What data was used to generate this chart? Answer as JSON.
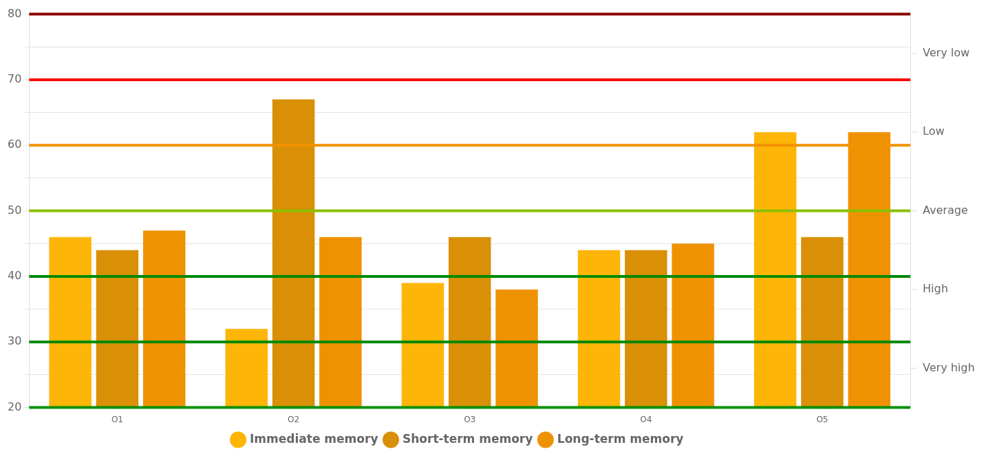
{
  "chart_data": {
    "type": "bar",
    "categories": [
      "O1",
      "O2",
      "O3",
      "O4",
      "O5"
    ],
    "series": [
      {
        "name": "Immediate memory",
        "color": "#fdb507",
        "values": [
          46,
          32,
          39,
          44,
          62
        ]
      },
      {
        "name": "Short-term memory",
        "color": "#d98f06",
        "values": [
          44,
          67,
          46,
          44,
          46
        ]
      },
      {
        "name": "Long-term memory",
        "color": "#ef9202",
        "values": [
          47,
          46,
          38,
          45,
          62
        ]
      }
    ],
    "ylim": [
      20,
      80
    ],
    "yticks": [
      20,
      {
        "value": 25,
        "label": null
      },
      30,
      {
        "value": 35,
        "label": null
      },
      40,
      {
        "value": 45,
        "label": null
      },
      50,
      {
        "value": 55,
        "label": null
      },
      60,
      {
        "value": 65,
        "label": null
      },
      70,
      {
        "value": 75,
        "label": null
      },
      80
    ],
    "annotations": [
      "Very low",
      "Low",
      "Average",
      "High",
      "Very high"
    ],
    "ref_lines": [
      {
        "axis": "y",
        "value": 80,
        "color": "#8b0000"
      },
      {
        "axis": "y",
        "value": 70,
        "color": "#ff0000"
      },
      {
        "axis": "y",
        "value": 60,
        "color": "#f39200"
      },
      {
        "axis": "y",
        "value": 50,
        "color": "#8cbf00"
      },
      {
        "axis": "y",
        "value": 40,
        "color": "#008a00"
      },
      {
        "axis": "y",
        "value": 30,
        "color": "#008800"
      },
      {
        "axis": "y",
        "value": 20,
        "color": "#009000"
      }
    ],
    "grid": "y",
    "legend": "bottom"
  }
}
